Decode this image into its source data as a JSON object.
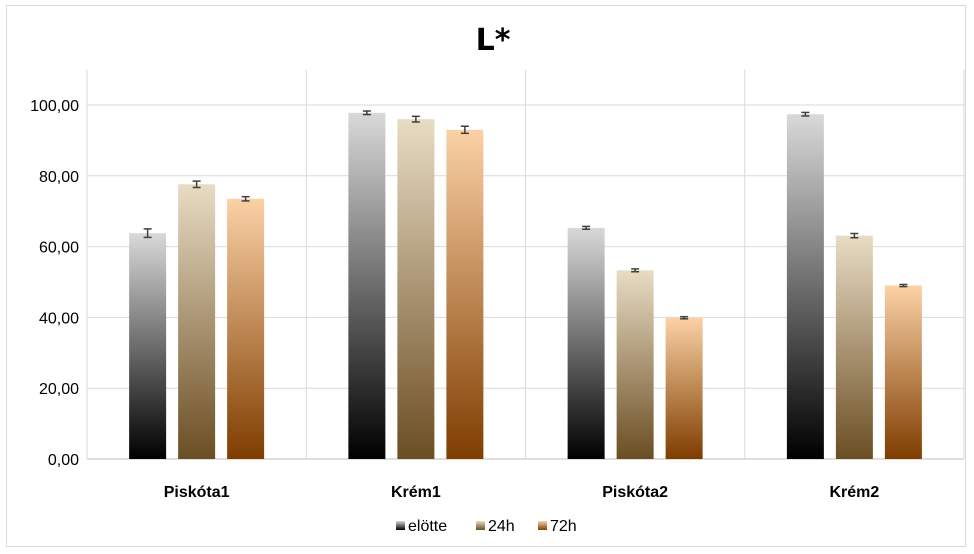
{
  "chart_data": {
    "type": "bar",
    "title": "L*",
    "categories": [
      "Piskóta1",
      "Krém1",
      "Piskóta2",
      "Krém2"
    ],
    "series": [
      {
        "name": "elötte",
        "values": [
          63.8,
          97.8,
          65.3,
          97.4
        ],
        "errors": [
          1.2,
          0.5,
          0.4,
          0.5
        ],
        "gradient_top": "#d9d9d9",
        "gradient_bottom": "#000000"
      },
      {
        "name": "24h",
        "values": [
          77.6,
          96.0,
          53.3,
          63.1
        ],
        "errors": [
          0.9,
          0.8,
          0.4,
          0.6
        ],
        "gradient_top": "#e8dcc4",
        "gradient_bottom": "#6b4e23"
      },
      {
        "name": "72h",
        "values": [
          73.5,
          93.0,
          39.9,
          49.0
        ],
        "errors": [
          0.6,
          1.0,
          0.3,
          0.3
        ],
        "gradient_top": "#fbd1a6",
        "gradient_bottom": "#7f3d00"
      }
    ],
    "ylim": [
      0,
      110
    ],
    "yticks": [
      "0,00",
      "20,00",
      "40,00",
      "60,00",
      "80,00",
      "100,00"
    ],
    "ytick_values": [
      0,
      20,
      40,
      60,
      80,
      100
    ],
    "grid": true,
    "legend_position": "bottom",
    "xlabel": "",
    "ylabel": ""
  }
}
